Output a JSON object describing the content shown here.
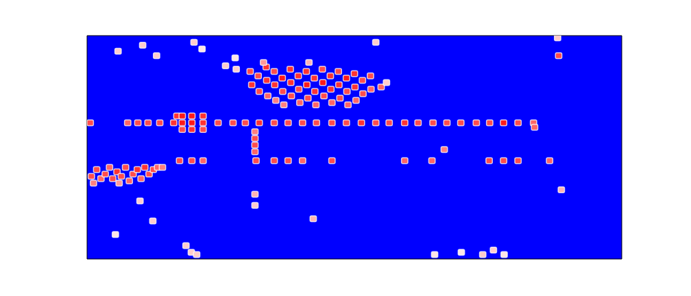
{
  "chart_data": {
    "type": "heatmap",
    "tick_labels": false,
    "xlim": [
      0,
      100
    ],
    "ylim": [
      0,
      100
    ],
    "zlim": [
      0,
      1
    ],
    "cells": [
      [
        0.6,
        61,
        0.85
      ],
      [
        7.6,
        61,
        0.8
      ],
      [
        9.5,
        61,
        0.85
      ],
      [
        11.4,
        61,
        0.85
      ],
      [
        13.6,
        61,
        0.85
      ],
      [
        16.2,
        61,
        0.9
      ],
      [
        17.8,
        61,
        0.95
      ],
      [
        19.6,
        61,
        0.95
      ],
      [
        21.7,
        61,
        0.9
      ],
      [
        24.5,
        61,
        0.85
      ],
      [
        27.3,
        61,
        0.85
      ],
      [
        29.6,
        61,
        0.85
      ],
      [
        32.2,
        61,
        0.9
      ],
      [
        35,
        61,
        0.85
      ],
      [
        37.6,
        61,
        0.85
      ],
      [
        40.3,
        61,
        0.85
      ],
      [
        42.9,
        61,
        0.85
      ],
      [
        45.8,
        61,
        0.85
      ],
      [
        48.5,
        61,
        0.85
      ],
      [
        51.3,
        61,
        0.9
      ],
      [
        54,
        61,
        0.85
      ],
      [
        56.5,
        61,
        0.85
      ],
      [
        59.4,
        61,
        0.9
      ],
      [
        61.9,
        61,
        0.85
      ],
      [
        64.7,
        61,
        0.85
      ],
      [
        67.3,
        61,
        0.85
      ],
      [
        69.9,
        61,
        0.85
      ],
      [
        72.8,
        61,
        0.85
      ],
      [
        75.3,
        61,
        0.85
      ],
      [
        77.9,
        61,
        0.95
      ],
      [
        80.6,
        61,
        0.85
      ],
      [
        83.5,
        61,
        0.8
      ],
      [
        16.8,
        64,
        0.9
      ],
      [
        17.8,
        64,
        0.95
      ],
      [
        19.6,
        64,
        0.95
      ],
      [
        21.7,
        64,
        0.9
      ],
      [
        17.8,
        58,
        0.85
      ],
      [
        19.6,
        58,
        0.9
      ],
      [
        21.7,
        58,
        0.85
      ],
      [
        17.3,
        44,
        0.85
      ],
      [
        19.6,
        44,
        0.85
      ],
      [
        21.7,
        44,
        0.8
      ],
      [
        31.6,
        44,
        0.85
      ],
      [
        35,
        44,
        0.85
      ],
      [
        37.6,
        44,
        0.85
      ],
      [
        40.3,
        44,
        0.8
      ],
      [
        45.8,
        44,
        0.85
      ],
      [
        59.4,
        44,
        0.8
      ],
      [
        64.5,
        44,
        0.8
      ],
      [
        75.2,
        44,
        0.85
      ],
      [
        77.9,
        44,
        0.85
      ],
      [
        80.6,
        44,
        0.85
      ],
      [
        86.5,
        44,
        0.8
      ],
      [
        66.8,
        49,
        0.75
      ],
      [
        31.4,
        48,
        0.8
      ],
      [
        31.4,
        51,
        0.85
      ],
      [
        31.4,
        54,
        0.85
      ],
      [
        31.4,
        57,
        0.75
      ],
      [
        0.8,
        37,
        0.85
      ],
      [
        1.8,
        40,
        0.85
      ],
      [
        2.6,
        36,
        0.8
      ],
      [
        3.4,
        38,
        0.85
      ],
      [
        4.2,
        41,
        0.8
      ],
      [
        4.8,
        36,
        0.85
      ],
      [
        5.6,
        39,
        0.9
      ],
      [
        6.4,
        37,
        0.85
      ],
      [
        7.2,
        41,
        0.85
      ],
      [
        7.9,
        35,
        0.8
      ],
      [
        8.6,
        38,
        0.85
      ],
      [
        9.4,
        40,
        0.9
      ],
      [
        10.1,
        36,
        0.8
      ],
      [
        10.8,
        41,
        0.9
      ],
      [
        11.6,
        38,
        0.85
      ],
      [
        12.4,
        40,
        0.85
      ],
      [
        13.2,
        41,
        0.8
      ],
      [
        14.1,
        41,
        0.75
      ],
      [
        1.2,
        34,
        0.75
      ],
      [
        6,
        34,
        0.7
      ],
      [
        30.5,
        84,
        0.85
      ],
      [
        30.8,
        78,
        0.9
      ],
      [
        32,
        82,
        0.85
      ],
      [
        32.2,
        75,
        0.85
      ],
      [
        33.5,
        86,
        0.9
      ],
      [
        33.6,
        80,
        0.9
      ],
      [
        33.8,
        73,
        0.8
      ],
      [
        35,
        84,
        0.85
      ],
      [
        35.1,
        78,
        0.9
      ],
      [
        35.3,
        71,
        0.75
      ],
      [
        36.5,
        81,
        0.95
      ],
      [
        36.6,
        75,
        0.85
      ],
      [
        36.8,
        69,
        0.75
      ],
      [
        38,
        85,
        0.9
      ],
      [
        38.1,
        79,
        0.9
      ],
      [
        38.2,
        73,
        0.85
      ],
      [
        39.5,
        82,
        0.9
      ],
      [
        39.6,
        76,
        0.85
      ],
      [
        39.8,
        70,
        0.8
      ],
      [
        41,
        84,
        0.9
      ],
      [
        41.1,
        78,
        0.95
      ],
      [
        41.3,
        72,
        0.85
      ],
      [
        42.5,
        81,
        0.9
      ],
      [
        42.6,
        75,
        0.9
      ],
      [
        42.8,
        69,
        0.8
      ],
      [
        44,
        85,
        0.85
      ],
      [
        44.1,
        79,
        0.95
      ],
      [
        44.3,
        73,
        0.85
      ],
      [
        45.5,
        82,
        0.9
      ],
      [
        45.6,
        76,
        0.9
      ],
      [
        45.8,
        70,
        0.8
      ],
      [
        47,
        84,
        0.85
      ],
      [
        47.1,
        78,
        0.9
      ],
      [
        47.3,
        72,
        0.85
      ],
      [
        48.5,
        81,
        0.95
      ],
      [
        48.6,
        75,
        0.85
      ],
      [
        48.8,
        69,
        0.8
      ],
      [
        50,
        83,
        0.9
      ],
      [
        50.1,
        77,
        0.9
      ],
      [
        50.3,
        71,
        0.8
      ],
      [
        51.5,
        80,
        0.85
      ],
      [
        51.6,
        74,
        0.85
      ],
      [
        53,
        82,
        0.85
      ],
      [
        53.1,
        76,
        0.8
      ],
      [
        55,
        77,
        0.8
      ],
      [
        56,
        79,
        0.6
      ],
      [
        33,
        88,
        0.7
      ],
      [
        41.5,
        88,
        0.65
      ],
      [
        5.8,
        93,
        0.6
      ],
      [
        10.4,
        95.7,
        0.6
      ],
      [
        13,
        91,
        0.6
      ],
      [
        20,
        97,
        0.6
      ],
      [
        21.5,
        94,
        0.55
      ],
      [
        25.9,
        86.5,
        0.6
      ],
      [
        27.9,
        85,
        0.6
      ],
      [
        27.7,
        90,
        0.55
      ],
      [
        54,
        97,
        0.6
      ],
      [
        88.2,
        91,
        0.85
      ],
      [
        88,
        99,
        0.6
      ],
      [
        9.9,
        26,
        0.6
      ],
      [
        12.3,
        17,
        0.6
      ],
      [
        5.3,
        11,
        0.55
      ],
      [
        31.4,
        29,
        0.65
      ],
      [
        31.4,
        24,
        0.6
      ],
      [
        42.3,
        18,
        0.65
      ],
      [
        88.7,
        31,
        0.65
      ],
      [
        83.7,
        59,
        0.8
      ],
      [
        18.5,
        6,
        0.6
      ],
      [
        19.5,
        3,
        0.6
      ],
      [
        20.5,
        2,
        0.6
      ],
      [
        65,
        2,
        0.55
      ],
      [
        70,
        3,
        0.55
      ],
      [
        74,
        2,
        0.6
      ],
      [
        76,
        4,
        0.6
      ],
      [
        78,
        2,
        0.55
      ]
    ]
  }
}
